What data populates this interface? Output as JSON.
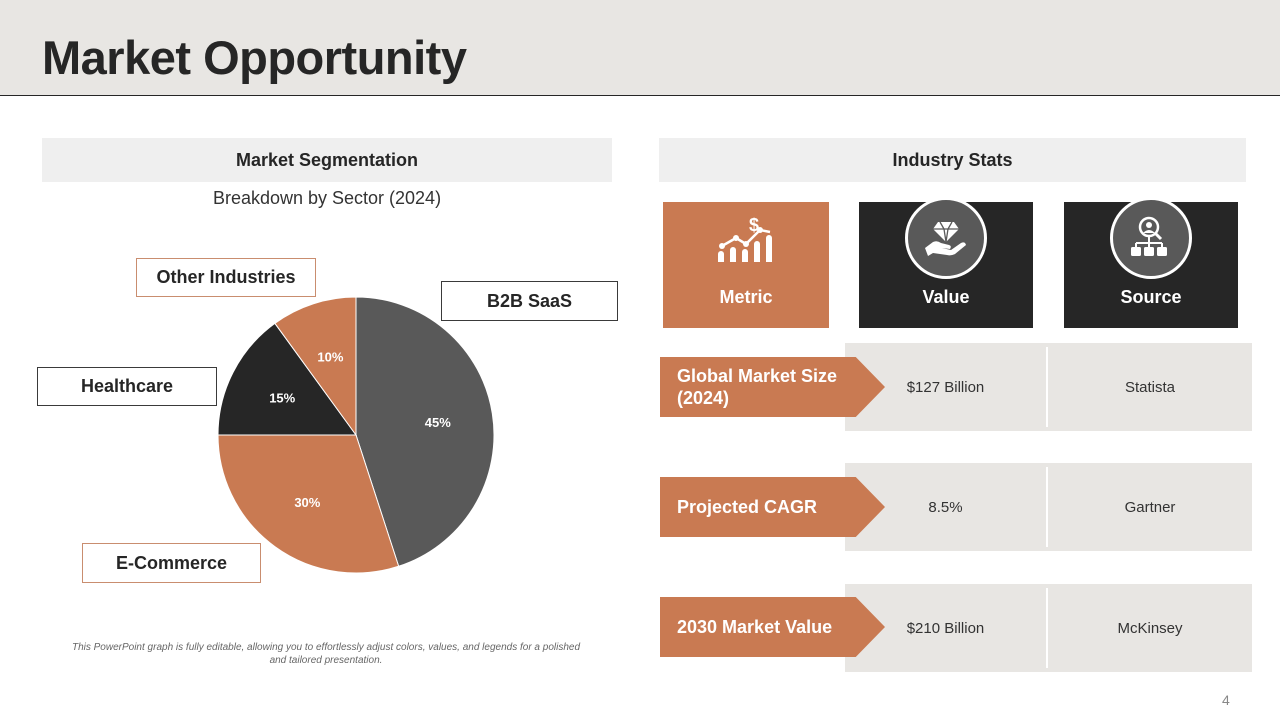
{
  "header": {
    "title": "Market Opportunity"
  },
  "segmentation": {
    "heading": "Market Segmentation",
    "subtitle": "Breakdown by Sector (2024)",
    "callouts": {
      "other": "Other Industries",
      "b2b": "B2B SaaS",
      "healthcare": "Healthcare",
      "ecommerce": "E-Commerce"
    },
    "footnote": "This PowerPoint graph is fully editable, allowing you to effortlessly adjust colors, values, and legends for a polished and tailored presentation."
  },
  "chart_data": {
    "type": "pie",
    "title": "Breakdown by Sector (2024)",
    "categories": [
      "B2B SaaS",
      "E-Commerce",
      "Healthcare",
      "Other Industries"
    ],
    "values": [
      45,
      30,
      15,
      10
    ],
    "labels": [
      "45%",
      "30%",
      "15%",
      "10%"
    ],
    "colors": [
      "#595959",
      "#c97a52",
      "#262626",
      "#c97a52"
    ],
    "label_colors": [
      "#ffffff",
      "#ffffff",
      "#ffffff",
      "#ffffff"
    ]
  },
  "stats": {
    "heading": "Industry Stats",
    "columns": {
      "metric": "Metric",
      "value": "Value",
      "source": "Source"
    },
    "rows": [
      {
        "metric": "Global Market Size (2024)",
        "value": "$127 Billion",
        "source": "Statista"
      },
      {
        "metric": "Projected CAGR",
        "value": "8.5%",
        "source": "Gartner"
      },
      {
        "metric": "2030 Market Value",
        "value": "$210 Billion",
        "source": "McKinsey"
      }
    ],
    "icons": {
      "metric": "growth-chart-dollar-icon",
      "value": "hand-diamond-icon",
      "source": "person-network-icon"
    }
  },
  "colors": {
    "accent": "#c97a52",
    "dark": "#262626",
    "header_bg": "#e8e6e3"
  },
  "slide_number": "4"
}
